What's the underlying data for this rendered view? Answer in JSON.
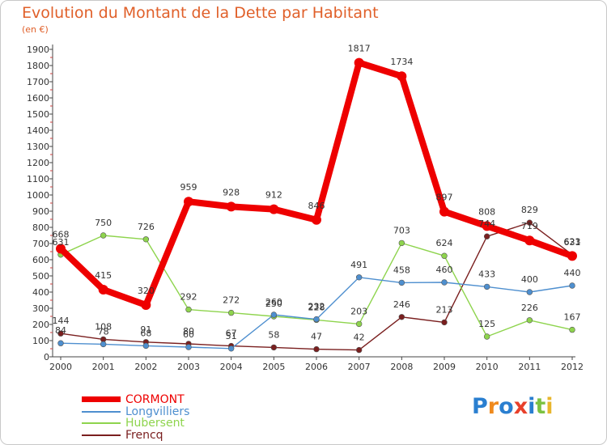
{
  "chart_data": {
    "type": "line",
    "title": "Evolution du Montant de la Dette par Habitant",
    "subtitle": "(en €)",
    "x": [
      "2000",
      "2001",
      "2002",
      "2003",
      "2004",
      "2005",
      "2006",
      "2007",
      "2008",
      "2009",
      "2010",
      "2011",
      "2012"
    ],
    "ylim": [
      0,
      1900
    ],
    "yticks": [
      0,
      100,
      200,
      300,
      400,
      500,
      600,
      700,
      800,
      900,
      1000,
      1100,
      1200,
      1300,
      1400,
      1500,
      1600,
      1700,
      1800,
      1900
    ],
    "grid": false,
    "legend_position": "bottom-left",
    "series": [
      {
        "name": "CORMONT",
        "color": "#ee0000",
        "values": [
          668,
          415,
          320,
          959,
          928,
          912,
          846,
          1817,
          1734,
          897,
          808,
          719,
          623
        ]
      },
      {
        "name": "Longvilliers",
        "color": "#4e8fcf",
        "values": [
          84,
          78,
          68,
          60,
          51,
          260,
          232,
          491,
          458,
          460,
          433,
          400,
          440
        ]
      },
      {
        "name": "Hubersent",
        "color": "#8ed44d",
        "values": [
          631,
          750,
          726,
          292,
          272,
          250,
          228,
          203,
          703,
          624,
          125,
          226,
          167
        ]
      },
      {
        "name": "Frencq",
        "color": "#7a1f1f",
        "values": [
          144,
          108,
          91,
          80,
          67,
          58,
          47,
          42,
          246,
          213,
          744,
          829,
          631
        ]
      }
    ]
  },
  "logo": {
    "letters": [
      {
        "char": "P",
        "color": "#2a7fd0"
      },
      {
        "char": "r",
        "color": "#ef8a1e"
      },
      {
        "char": "o",
        "color": "#2a7fd0"
      },
      {
        "char": "x",
        "color": "#e8402b"
      },
      {
        "char": "i",
        "color": "#2a7fd0"
      },
      {
        "char": "t",
        "color": "#7cc242"
      },
      {
        "char": "i",
        "color": "#e8b62c"
      }
    ]
  }
}
